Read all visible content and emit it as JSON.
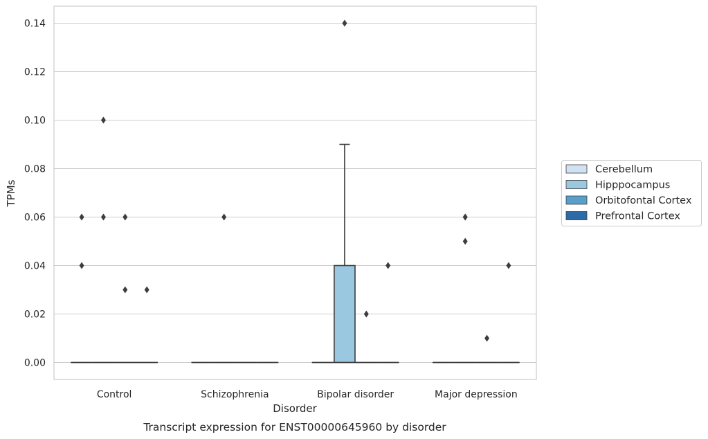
{
  "caption": "Transcript expression for ENST00000645960 by disorder",
  "chart_data": {
    "type": "box",
    "title": "",
    "xlabel": "Disorder",
    "ylabel": "TPMs",
    "ylim": [
      -0.007,
      0.147
    ],
    "yticks": [
      0.0,
      0.02,
      0.04,
      0.06,
      0.08,
      0.1,
      0.12,
      0.14
    ],
    "ytick_labels": [
      "0.00",
      "0.02",
      "0.04",
      "0.06",
      "0.08",
      "0.10",
      "0.12",
      "0.14"
    ],
    "grid": "y",
    "categories": [
      "Control",
      "Schizophrenia",
      "Bipolar disorder",
      "Major depression"
    ],
    "legend_position": "right",
    "series": [
      {
        "name": "Cerebellum",
        "color": "#d1e2f2",
        "boxes": [
          {
            "q1": 0,
            "median": 0,
            "q3": 0,
            "whisker_low": 0,
            "whisker_high": 0,
            "outliers": [
              0.06,
              0.04
            ]
          },
          {
            "q1": 0,
            "median": 0,
            "q3": 0,
            "whisker_low": 0,
            "whisker_high": 0,
            "outliers": []
          },
          {
            "q1": 0,
            "median": 0,
            "q3": 0,
            "whisker_low": 0,
            "whisker_high": 0,
            "outliers": []
          },
          {
            "q1": 0,
            "median": 0,
            "q3": 0,
            "whisker_low": 0,
            "whisker_high": 0,
            "outliers": []
          }
        ]
      },
      {
        "name": "Hipppocampus",
        "color": "#9ac8e0",
        "boxes": [
          {
            "q1": 0,
            "median": 0,
            "q3": 0,
            "whisker_low": 0,
            "whisker_high": 0,
            "outliers": [
              0.1,
              0.06
            ]
          },
          {
            "q1": 0,
            "median": 0,
            "q3": 0,
            "whisker_low": 0,
            "whisker_high": 0,
            "outliers": [
              0.06
            ]
          },
          {
            "q1": 0,
            "median": 0,
            "q3": 0.04,
            "whisker_low": 0,
            "whisker_high": 0.09,
            "outliers": [
              0.14
            ]
          },
          {
            "q1": 0,
            "median": 0,
            "q3": 0,
            "whisker_low": 0,
            "whisker_high": 0,
            "outliers": [
              0.06,
              0.06,
              0.05
            ]
          }
        ]
      },
      {
        "name": "Orbitofontal Cortex",
        "color": "#5a9fcb",
        "boxes": [
          {
            "q1": 0,
            "median": 0,
            "q3": 0,
            "whisker_low": 0,
            "whisker_high": 0,
            "outliers": [
              0.06,
              0.03
            ]
          },
          {
            "q1": 0,
            "median": 0,
            "q3": 0,
            "whisker_low": 0,
            "whisker_high": 0,
            "outliers": []
          },
          {
            "q1": 0,
            "median": 0,
            "q3": 0,
            "whisker_low": 0,
            "whisker_high": 0,
            "outliers": [
              0.02
            ]
          },
          {
            "q1": 0,
            "median": 0,
            "q3": 0,
            "whisker_low": 0,
            "whisker_high": 0,
            "outliers": [
              0.01
            ]
          }
        ]
      },
      {
        "name": "Prefrontal Cortex",
        "color": "#2d6ba8",
        "boxes": [
          {
            "q1": 0,
            "median": 0,
            "q3": 0,
            "whisker_low": 0,
            "whisker_high": 0,
            "outliers": [
              0.03
            ]
          },
          {
            "q1": 0,
            "median": 0,
            "q3": 0,
            "whisker_low": 0,
            "whisker_high": 0,
            "outliers": []
          },
          {
            "q1": 0,
            "median": 0,
            "q3": 0,
            "whisker_low": 0,
            "whisker_high": 0,
            "outliers": [
              0.04
            ]
          },
          {
            "q1": 0,
            "median": 0,
            "q3": 0,
            "whisker_low": 0,
            "whisker_high": 0,
            "outliers": [
              0.04
            ]
          }
        ]
      }
    ]
  }
}
